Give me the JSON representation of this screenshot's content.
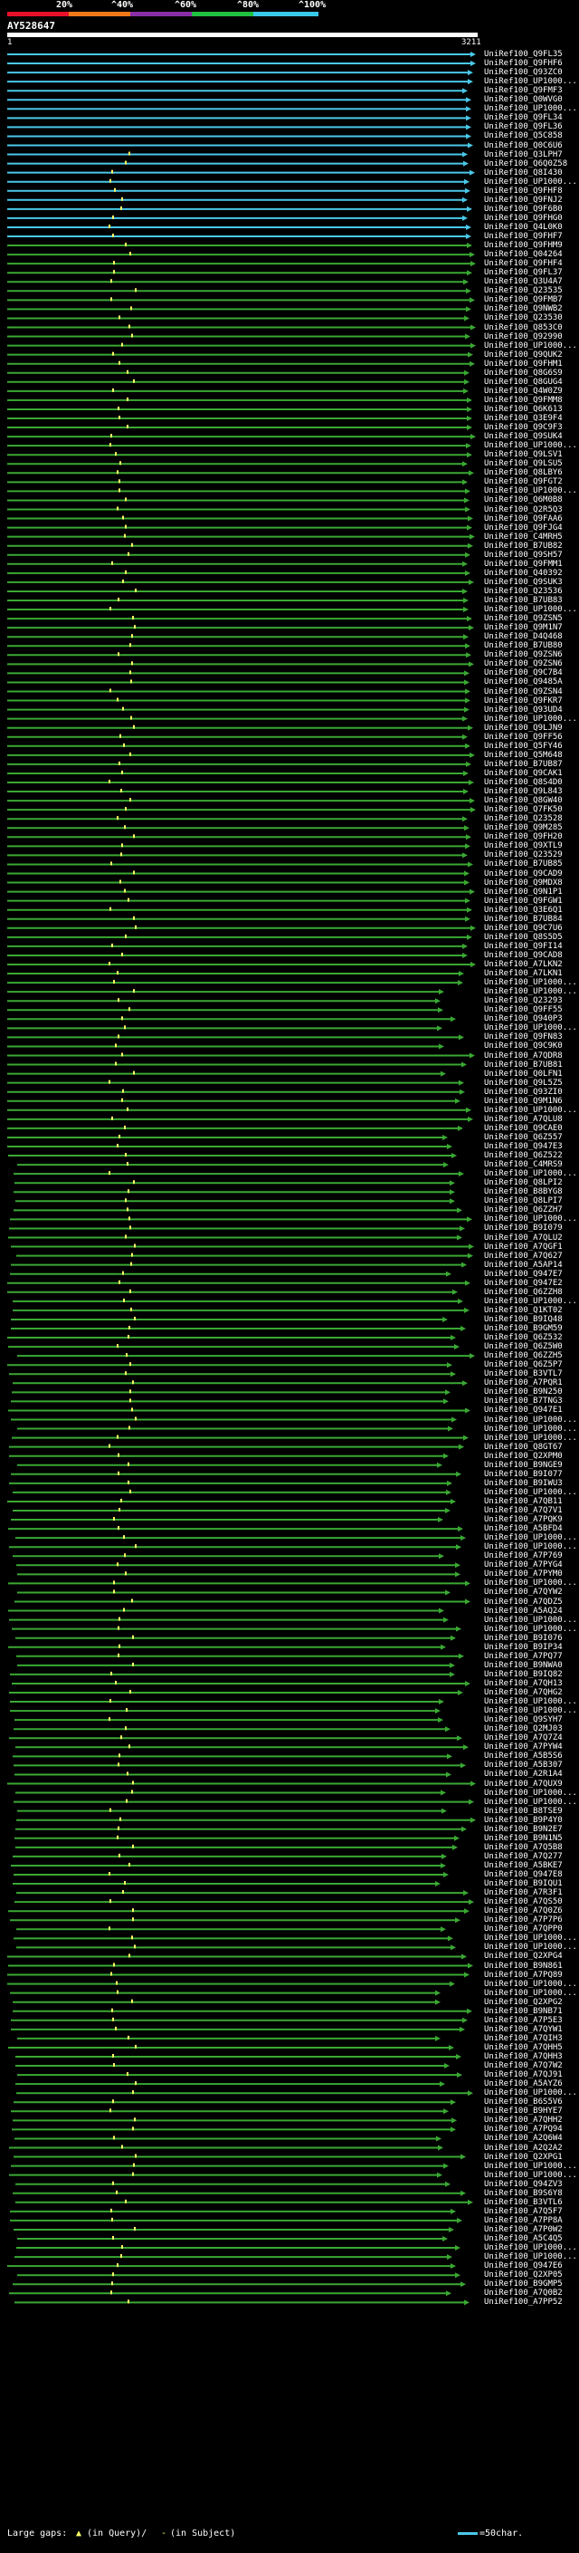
{
  "scale": {
    "labels": [
      "20%",
      "^40%",
      "^60%",
      "^80%",
      "^100%"
    ],
    "colors": [
      "#e8102a",
      "#f07818",
      "#8a2ea8",
      "#20c040",
      "#38c8e8"
    ]
  },
  "query": {
    "name": "AY528647",
    "start": "1",
    "end": "3211",
    "length": 3211
  },
  "colors": {
    "high": "#4ac8e8",
    "mid": "#3aa833",
    "gap": "#ffff66"
  },
  "hits": [
    "UniRef100_Q9FL35",
    "UniRef100_Q9FHF6",
    "UniRef100_Q93ZC0",
    "UniRef100_UP1000...",
    "UniRef100_Q9FMF3",
    "UniRef100_Q0WVG0",
    "UniRef100_UP1000...",
    "UniRef100_Q9FL34",
    "UniRef100_Q9FL36",
    "UniRef100_Q5C858",
    "UniRef100_Q0C6U6",
    "UniRef100_Q3LPH7",
    "UniRef100_Q6Q0Z58",
    "UniRef100_Q8I430",
    "UniRef100_UP1000...",
    "UniRef100_Q9FHF8",
    "UniRef100_Q9FNJ2",
    "UniRef100_Q9F6B0",
    "UniRef100_Q9FHG0",
    "UniRef100_Q4L0K0",
    "UniRef100_Q9FHF7",
    "UniRef100_Q9FHM9",
    "UniRef100_Q04264",
    "UniRef100_Q9FHF4",
    "UniRef100_Q9FL37",
    "UniRef100_Q3U4A7",
    "UniRef100_Q23535",
    "UniRef100_Q9FMB7",
    "UniRef100_Q9NWB2",
    "UniRef100_Q23530",
    "UniRef100_Q853C0",
    "UniRef100_Q92990",
    "UniRef100_UP1000...",
    "UniRef100_Q9QUK2",
    "UniRef100_Q9FHM1",
    "UniRef100_Q8G6S9",
    "UniRef100_Q8GUG4",
    "UniRef100_Q4W0Z9",
    "UniRef100_Q9FMM8",
    "UniRef100_Q6K613",
    "UniRef100_Q3E9F4",
    "UniRef100_Q9C9F3",
    "UniRef100_Q9SUK4",
    "UniRef100_UP1000...",
    "UniRef100_Q9LSV1",
    "UniRef100_Q9LSU5",
    "UniRef100_Q8LBY6",
    "UniRef100_Q9FGT2",
    "UniRef100_UP1000...",
    "UniRef100_Q6M0B8",
    "UniRef100_Q2R5Q3",
    "UniRef100_Q9FAA6",
    "UniRef100_Q9FJG4",
    "UniRef100_C4MRH5",
    "UniRef100_B7UB82",
    "UniRef100_Q9SH57",
    "UniRef100_Q9FMM1",
    "UniRef100_Q40392",
    "UniRef100_Q9SUK3",
    "UniRef100_Q23536",
    "UniRef100_B7UB83",
    "UniRef100_UP1000...",
    "UniRef100_Q9ZSN5",
    "UniRef100_Q9M1N7",
    "UniRef100_D4Q468",
    "UniRef100_B7UB80",
    "UniRef100_Q9ZSN6",
    "UniRef100_Q9ZSN6",
    "UniRef100_Q9C7B4",
    "UniRef100_Q9485A",
    "UniRef100_Q9ZSN4",
    "UniRef100_Q9FKR7",
    "UniRef100_Q93UD4",
    "UniRef100_UP1000...",
    "UniRef100_Q9LJN9",
    "UniRef100_Q9FF56",
    "UniRef100_Q5FY46",
    "UniRef100_Q5M648",
    "UniRef100_B7UB87",
    "UniRef100_Q9CAK1",
    "UniRef100_Q8S4D0",
    "UniRef100_Q9L843",
    "UniRef100_Q8GW40",
    "UniRef100_Q7FK50",
    "UniRef100_Q23528",
    "UniRef100_Q9M285",
    "UniRef100_Q9FH20",
    "UniRef100_Q9XTL9",
    "UniRef100_Q23529",
    "UniRef100_B7UB85",
    "UniRef100_Q9CAD9",
    "UniRef100_Q9MDX8",
    "UniRef100_Q9N1P1",
    "UniRef100_Q9FGW1",
    "UniRef100_Q3E6Q1",
    "UniRef100_B7UB84",
    "UniRef100_Q9C7U6",
    "UniRef100_Q8S5D5",
    "UniRef100_Q9FI14",
    "UniRef100_Q9CAD8",
    "UniRef100_A7LKN2",
    "UniRef100_A7LKN1",
    "UniRef100_UP1000...",
    "UniRef100_UP1000...",
    "UniRef100_Q23293",
    "UniRef100_Q9FF55",
    "UniRef100_Q940P3",
    "UniRef100_UP1000...",
    "UniRef100_Q9FN83",
    "UniRef100_Q9C9K0",
    "UniRef100_A7QDR8",
    "UniRef100_B7UB81",
    "UniRef100_Q0LFN1",
    "UniRef100_Q9L5Z5",
    "UniRef100_Q93ZI0",
    "UniRef100_Q9M1N6",
    "UniRef100_UP1000...",
    "UniRef100_A7QLU8",
    "UniRef100_Q9CAE0",
    "UniRef100_Q6Z557",
    "UniRef100_Q947E3",
    "UniRef100_Q6Z522",
    "UniRef100_C4MRS9",
    "UniRef100_UP1000...",
    "UniRef100_Q8LPI2",
    "UniRef100_B8BYG8",
    "UniRef100_Q8LPI7",
    "UniRef100_Q6ZZH7",
    "UniRef100_UP1000...",
    "UniRef100_B9I079",
    "UniRef100_A7QLU2",
    "UniRef100_A7QGF1",
    "UniRef100_A7Q627",
    "UniRef100_A5AP14",
    "UniRef100_Q947E7",
    "UniRef100_Q947E2",
    "UniRef100_Q6ZZH8",
    "UniRef100_UP1000...",
    "UniRef100_Q1KT02",
    "UniRef100_B9IQ48",
    "UniRef100_B9GM59",
    "UniRef100_Q6Z532",
    "UniRef100_Q6Z5W0",
    "UniRef100_Q6ZZH5",
    "UniRef100_Q6Z5P7",
    "UniRef100_B3VTL7",
    "UniRef100_A7PQR1",
    "UniRef100_B9N250",
    "UniRef100_B7TNG3",
    "UniRef100_Q947E1",
    "UniRef100_UP1000...",
    "UniRef100_UP1000...",
    "UniRef100_UP1000...",
    "UniRef100_Q8GT67",
    "UniRef100_Q2XPM0",
    "UniRef100_B9NGE9",
    "UniRef100_B9I077",
    "UniRef100_B9IWU3",
    "UniRef100_UP1000...",
    "UniRef100_A7QB11",
    "UniRef100_A7Q7V1",
    "UniRef100_A7PQK9",
    "UniRef100_A5BFD4",
    "UniRef100_UP1000...",
    "UniRef100_UP1000...",
    "UniRef100_A7P769",
    "UniRef100_A7PYG4",
    "UniRef100_A7PYM0",
    "UniRef100_UP1000...",
    "UniRef100_A7QYW2",
    "UniRef100_A7QDZ5",
    "UniRef100_A5AQ24",
    "UniRef100_UP1000...",
    "UniRef100_UP1000...",
    "UniRef100_B9I076",
    "UniRef100_B9IP34",
    "UniRef100_A7PQ77",
    "UniRef100_B9NWA0",
    "UniRef100_B9IQ82",
    "UniRef100_A7QH13",
    "UniRef100_A7QHG2",
    "UniRef100_UP1000...",
    "UniRef100_UP1000...",
    "UniRef100_Q9SYH7",
    "UniRef100_Q2MJ03",
    "UniRef100_A7Q7Z4",
    "UniRef100_A7PYW4",
    "UniRef100_A5B5S6",
    "UniRef100_A5B307",
    "UniRef100_A2R1A4",
    "UniRef100_A7QUX9",
    "UniRef100_UP1000...",
    "UniRef100_UP1000...",
    "UniRef100_B8TSE9",
    "UniRef100_B9P4Y0",
    "UniRef100_B9N2E7",
    "UniRef100_B9N1N5",
    "UniRef100_A7Q5B8",
    "UniRef100_A7Q277",
    "UniRef100_A5BKE7",
    "UniRef100_Q947E8",
    "UniRef100_B9IQU1",
    "UniRef100_A7R3F1",
    "UniRef100_A7QS50",
    "UniRef100_A7Q0Z6",
    "UniRef100_A7P7P6",
    "UniRef100_A7QPP0",
    "UniRef100_UP1000...",
    "UniRef100_UP1000...",
    "UniRef100_Q2XPG4",
    "UniRef100_B9N861",
    "UniRef100_A7PQ89",
    "UniRef100_UP1000...",
    "UniRef100_UP1000...",
    "UniRef100_Q2XPG2",
    "UniRef100_B9NB71",
    "UniRef100_A7P5E3",
    "UniRef100_A7QYW1",
    "UniRef100_A7QIH3",
    "UniRef100_A7QHH5",
    "UniRef100_A7QHH3",
    "UniRef100_A7Q7W2",
    "UniRef100_A7QJ91",
    "UniRef100_A5AYZ6",
    "UniRef100_UP1000...",
    "UniRef100_B6S5V6",
    "UniRef100_B9HYE7",
    "UniRef100_A7QHH2",
    "UniRef100_A7PQ94",
    "UniRef100_A2Q6W4",
    "UniRef100_A2Q2A2",
    "UniRef100_Q2XPG1",
    "UniRef100_UP1000...",
    "UniRef100_UP1000...",
    "UniRef100_Q94ZV3",
    "UniRef100_B9S6Y8",
    "UniRef100_B3VTL6",
    "UniRef100_A7Q5F7",
    "UniRef100_A7PP8A",
    "UniRef100_A7P0W2",
    "UniRef100_A5C4Q5",
    "UniRef100_UP1000...",
    "UniRef100_UP1000...",
    "UniRef100_Q947E6",
    "UniRef100_Q2XP05",
    "UniRef100_B9GMP5",
    "UniRef100_A7Q0B2",
    "UniRef100_A7PP52"
  ],
  "legend": {
    "large_gaps": "Large gaps:",
    "in_query": "(in Query)/",
    "in_subject": "(in Subject)",
    "scale_label": "=50char."
  }
}
